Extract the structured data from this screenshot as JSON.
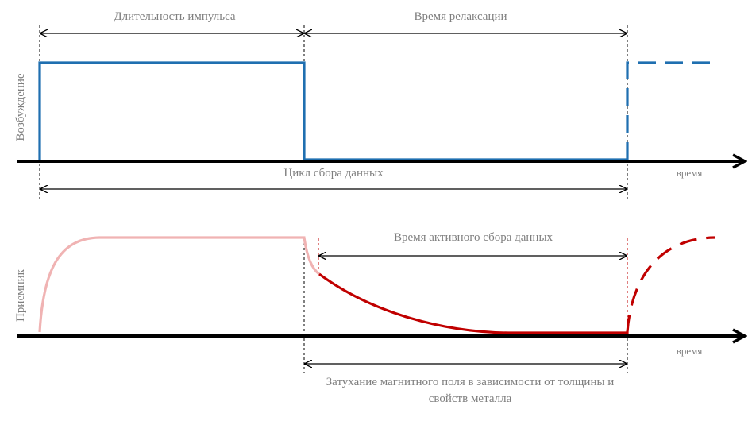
{
  "top_panel": {
    "ylabel": "Возбуждение",
    "xlabel": "время",
    "pulse_duration_label": "Длительность импульса",
    "relaxation_time_label": "Время релаксации",
    "cycle_label": "Цикл сбора данных"
  },
  "bottom_panel": {
    "ylabel": "Приемник",
    "xlabel": "время",
    "active_collection_label": "Время активного сбора данных",
    "decay_label_line1": "Затухание магнитного поля в зависимости от толщины и",
    "decay_label_line2": "свойств металла"
  },
  "colors": {
    "excitation": "#1f6fb0",
    "receiver_light": "#f0b3b3",
    "receiver_dark": "#c00000",
    "axis": "#000000",
    "text": "#7f7f7f"
  }
}
